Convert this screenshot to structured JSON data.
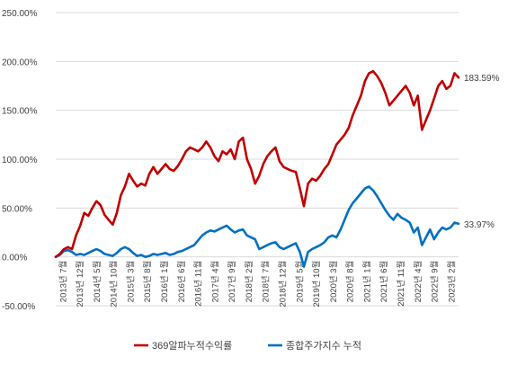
{
  "chart_data": {
    "type": "line",
    "title": "",
    "xlabel": "",
    "ylabel": "",
    "ylim": [
      -50,
      250
    ],
    "y_ticks": [
      -50,
      0,
      50,
      100,
      150,
      200,
      250
    ],
    "y_tick_labels": [
      "-50.00%",
      "0.00%",
      "50.00%",
      "100.00%",
      "150.00%",
      "200.00%",
      "250.00%"
    ],
    "grid": "horizontal",
    "legend": "bottom",
    "x_tick_labels": [
      "2013년 7월",
      "2013년 12월",
      "2014년 5월",
      "2014년 10월",
      "2015년 3월",
      "2015년 8월",
      "2016년 1월",
      "2016년 6월",
      "2016년 11월",
      "2017년 4월",
      "2017년 9월",
      "2018년 2월",
      "2018년 7월",
      "2018년 12월",
      "2019년 5월",
      "2019년 10월",
      "2020년 3월",
      "2020년 8월",
      "2021년 1월",
      "2021년 6월",
      "2021년 11월",
      "2022년 4월",
      "2022년 9월",
      "2023년 2월"
    ],
    "end_labels": [
      "183.59%",
      "33.97%"
    ],
    "series": [
      {
        "name": "369알파누적수익률",
        "color": "#c00000",
        "values": [
          0,
          3,
          8,
          10,
          8,
          22,
          32,
          45,
          42,
          50,
          57,
          53,
          43,
          38,
          33,
          45,
          63,
          72,
          85,
          78,
          72,
          75,
          73,
          85,
          92,
          85,
          90,
          95,
          90,
          88,
          93,
          100,
          108,
          112,
          110,
          108,
          112,
          118,
          112,
          103,
          98,
          108,
          105,
          110,
          100,
          118,
          122,
          100,
          90,
          75,
          83,
          95,
          103,
          108,
          112,
          98,
          92,
          90,
          88,
          87,
          70,
          52,
          75,
          80,
          78,
          83,
          90,
          95,
          105,
          115,
          120,
          125,
          132,
          145,
          155,
          165,
          180,
          188,
          190,
          185,
          178,
          168,
          155,
          160,
          165,
          170,
          175,
          168,
          155,
          165,
          130,
          140,
          150,
          162,
          175,
          180,
          172,
          175,
          188,
          183.59
        ]
      },
      {
        "name": "종합주가지수 누적",
        "color": "#0070c0",
        "values": [
          0,
          2,
          6,
          7,
          5,
          2,
          3,
          2,
          4,
          6,
          8,
          6,
          3,
          2,
          1,
          4,
          8,
          10,
          8,
          4,
          1,
          2,
          0,
          1,
          3,
          2,
          3,
          4,
          2,
          3,
          5,
          6,
          8,
          10,
          12,
          17,
          22,
          25,
          27,
          26,
          28,
          30,
          32,
          28,
          25,
          27,
          28,
          22,
          20,
          18,
          8,
          10,
          12,
          14,
          15,
          10,
          8,
          10,
          12,
          14,
          5,
          -10,
          5,
          8,
          10,
          12,
          15,
          20,
          22,
          20,
          28,
          38,
          48,
          55,
          60,
          65,
          70,
          72,
          68,
          62,
          55,
          48,
          42,
          38,
          44,
          40,
          38,
          35,
          25,
          30,
          12,
          20,
          28,
          18,
          25,
          30,
          28,
          30,
          35,
          33.97
        ]
      }
    ]
  }
}
